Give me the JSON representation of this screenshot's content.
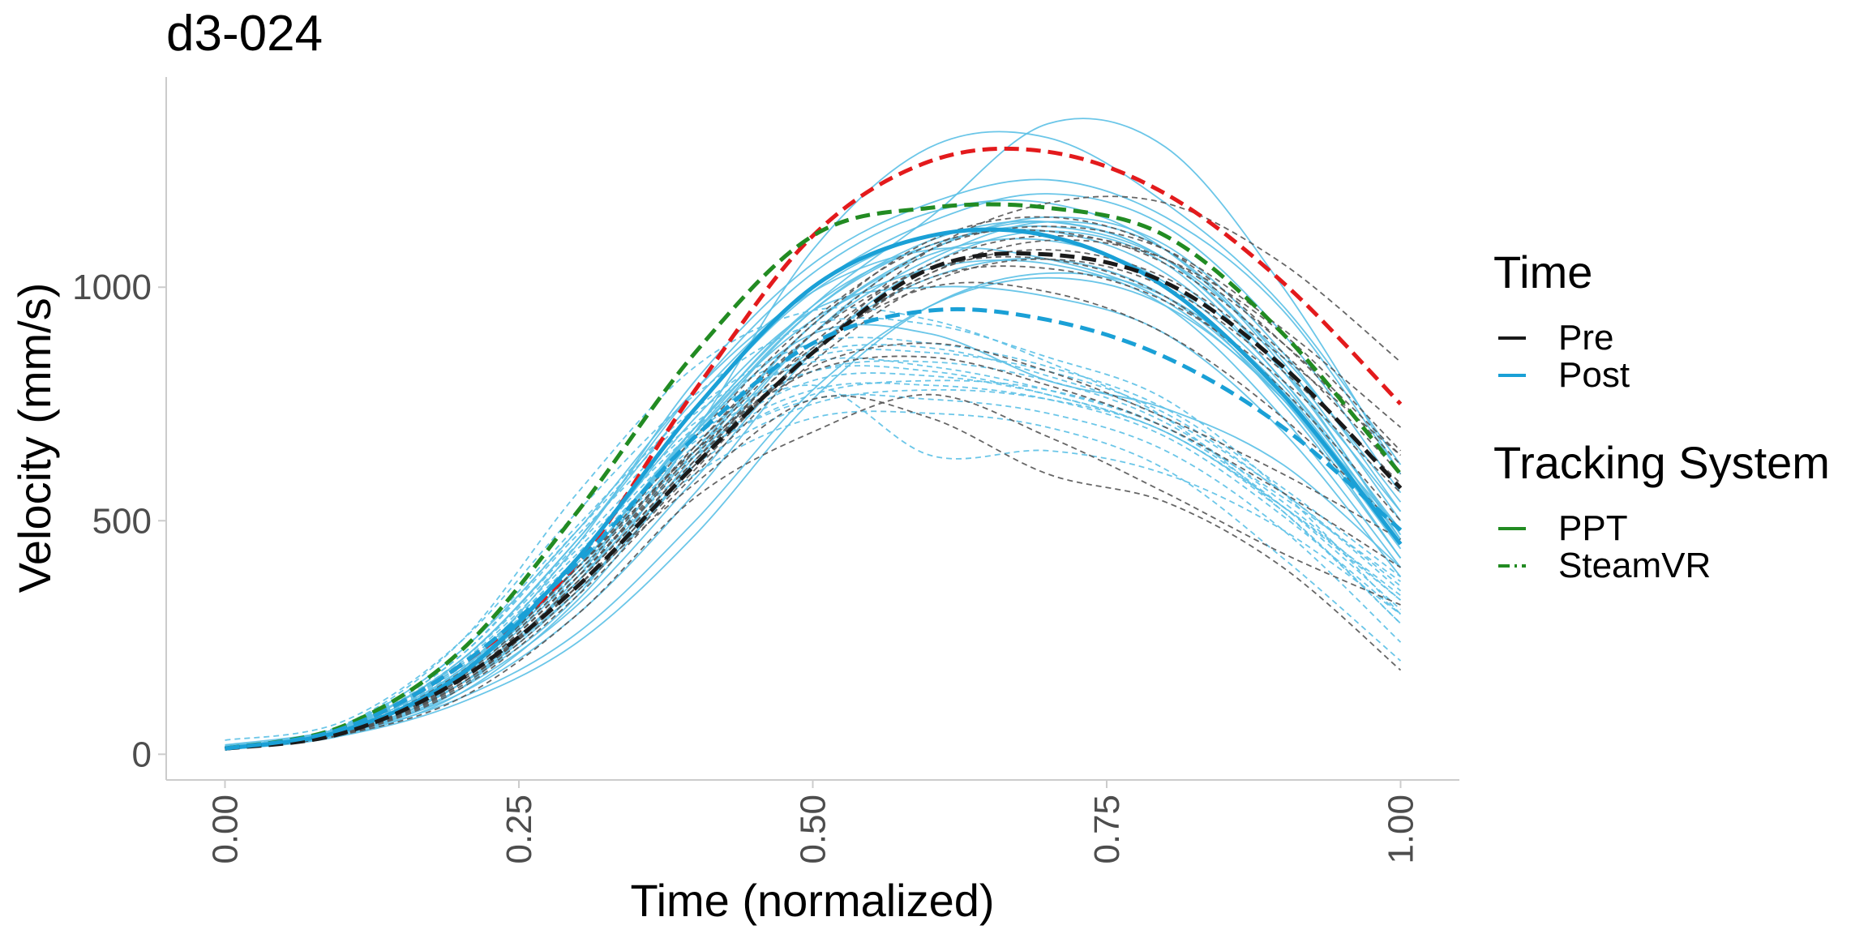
{
  "chart_data": {
    "type": "line",
    "title": "d3-024",
    "xlabel": "Time (normalized)",
    "ylabel": "Velocity (mm/s)",
    "xlim": [
      -0.05,
      1.05
    ],
    "ylim": [
      -55,
      1450
    ],
    "x_ticks": [
      0,
      0.25,
      0.5,
      0.75,
      1
    ],
    "x_tick_labels": [
      "0.00",
      "0.25",
      "0.50",
      "0.75",
      "1.00"
    ],
    "y_ticks": [
      0,
      500,
      1000
    ],
    "y_tick_labels": [
      "0",
      "500",
      "1000"
    ],
    "x_tick_label_rotation": "vertical",
    "grid": false,
    "legend_position": "right",
    "legend": {
      "groups": [
        {
          "title": "Time",
          "items": [
            {
              "label": "Pre",
              "color": "#1a1a1a",
              "dash": "solid"
            },
            {
              "label": "Post",
              "color": "#1aa0d6",
              "dash": "solid"
            }
          ]
        },
        {
          "title": "Tracking System",
          "items": [
            {
              "label": "PPT",
              "color": "#228b22",
              "dash": "solid"
            },
            {
              "label": "SteamVR",
              "color": "#228b22",
              "dash": "dashed"
            }
          ]
        }
      ]
    },
    "x": [
      0,
      0.1,
      0.2,
      0.3,
      0.4,
      0.5,
      0.6,
      0.7,
      0.8,
      0.9,
      1.0
    ],
    "series": [
      {
        "color": "#e31a1c",
        "dash": "dashed",
        "width": "thick",
        "values": [
          12,
          55,
          190,
          410,
          780,
          1110,
          1270,
          1290,
          1200,
          1010,
          750
        ]
      },
      {
        "color": "#228b22",
        "dash": "dashed",
        "width": "thick",
        "values": [
          12,
          60,
          220,
          520,
          860,
          1110,
          1170,
          1170,
          1110,
          900,
          600
        ]
      },
      {
        "color": "#1aa0d6",
        "dash": "solid",
        "width": "thick",
        "values": [
          12,
          50,
          170,
          420,
          740,
          1000,
          1110,
          1110,
          1000,
          770,
          450
        ]
      },
      {
        "color": "#1a1a1a",
        "dash": "dashed",
        "width": "thick",
        "values": [
          12,
          45,
          160,
          360,
          620,
          860,
          1040,
          1070,
          1010,
          830,
          570
        ]
      },
      {
        "color": "#1aa0d6",
        "dash": "dashed",
        "width": "thick",
        "values": [
          12,
          55,
          190,
          410,
          680,
          880,
          950,
          930,
          850,
          700,
          480
        ]
      },
      {
        "color": "#5bc0e6",
        "dash": "solid",
        "width": "thin",
        "values": [
          20,
          55,
          150,
          340,
          690,
          1080,
          1300,
          1320,
          1180,
          960,
          620
        ]
      },
      {
        "color": "#5bc0e6",
        "dash": "solid",
        "width": "thin",
        "values": [
          15,
          50,
          180,
          450,
          800,
          1050,
          1180,
          1230,
          1150,
          950,
          600
        ]
      },
      {
        "color": "#5bc0e6",
        "dash": "solid",
        "width": "thin",
        "values": [
          18,
          55,
          200,
          460,
          760,
          1000,
          1140,
          1200,
          1130,
          900,
          560
        ]
      },
      {
        "color": "#5bc0e6",
        "dash": "solid",
        "width": "thin",
        "values": [
          10,
          45,
          140,
          380,
          700,
          960,
          1150,
          1350,
          1300,
          1000,
          600
        ]
      },
      {
        "color": "#5bc0e6",
        "dash": "solid",
        "width": "thin",
        "values": [
          14,
          48,
          130,
          300,
          560,
          860,
          1050,
          1120,
          1050,
          800,
          480
        ]
      },
      {
        "color": "#5bc0e6",
        "dash": "solid",
        "width": "thin",
        "values": [
          12,
          50,
          160,
          350,
          620,
          900,
          1080,
          1140,
          1060,
          820,
          520
        ]
      },
      {
        "color": "#5bc0e6",
        "dash": "solid",
        "width": "thin",
        "values": [
          16,
          60,
          220,
          480,
          780,
          990,
          1080,
          1060,
          970,
          760,
          480
        ]
      },
      {
        "color": "#5bc0e6",
        "dash": "solid",
        "width": "thin",
        "values": [
          12,
          50,
          170,
          400,
          700,
          930,
          1040,
          1050,
          960,
          720,
          400
        ]
      },
      {
        "color": "#5bc0e6",
        "dash": "solid",
        "width": "thin",
        "values": [
          14,
          55,
          180,
          420,
          720,
          950,
          1000,
          980,
          900,
          690,
          380
        ]
      },
      {
        "color": "#5bc0e6",
        "dash": "solid",
        "width": "thin",
        "values": [
          12,
          45,
          120,
          260,
          500,
          780,
          960,
          1020,
          960,
          760,
          440
        ]
      },
      {
        "color": "#5bc0e6",
        "dash": "solid",
        "width": "thin",
        "values": [
          10,
          40,
          130,
          330,
          630,
          900,
          1060,
          1140,
          1080,
          840,
          500
        ]
      },
      {
        "color": "#5bc0e6",
        "dash": "solid",
        "width": "thin",
        "values": [
          15,
          52,
          170,
          400,
          690,
          900,
          900,
          800,
          740,
          620,
          400
        ]
      },
      {
        "color": "#5bc0e6",
        "dash": "solid",
        "width": "thin",
        "values": [
          12,
          48,
          160,
          370,
          650,
          920,
          1070,
          1100,
          1010,
          790,
          460
        ]
      },
      {
        "color": "#5bc0e6",
        "dash": "solid",
        "width": "thin",
        "values": [
          10,
          42,
          140,
          320,
          590,
          870,
          1020,
          1060,
          980,
          760,
          420
        ]
      },
      {
        "color": "#5bc0e6",
        "dash": "solid",
        "width": "thin",
        "values": [
          13,
          50,
          175,
          420,
          740,
          990,
          1110,
          1110,
          1000,
          750,
          420
        ]
      },
      {
        "color": "#5bc0e6",
        "dash": "solid",
        "width": "thin",
        "values": [
          12,
          46,
          150,
          350,
          640,
          920,
          1080,
          1150,
          1090,
          860,
          520
        ]
      },
      {
        "color": "#5bc0e6",
        "dash": "solid",
        "width": "thin",
        "values": [
          11,
          44,
          150,
          370,
          680,
          950,
          1100,
          1140,
          1060,
          820,
          470
        ]
      },
      {
        "color": "#5bc0e6",
        "dash": "solid",
        "width": "thin",
        "values": [
          14,
          58,
          200,
          460,
          780,
          1030,
          1160,
          1180,
          1080,
          830,
          460
        ]
      },
      {
        "color": "#5bc0e6",
        "dash": "solid",
        "width": "thin",
        "values": [
          12,
          48,
          165,
          390,
          690,
          950,
          1090,
          1120,
          1030,
          800,
          450
        ]
      },
      {
        "color": "#5bc0e6",
        "dash": "solid",
        "width": "thin",
        "values": [
          13,
          50,
          170,
          400,
          700,
          960,
          1090,
          1130,
          1060,
          850,
          540
        ]
      },
      {
        "color": "#5bc0e6",
        "dash": "solid",
        "width": "thin",
        "values": [
          10,
          40,
          110,
          240,
          470,
          760,
          960,
          1030,
          980,
          780,
          450
        ]
      },
      {
        "color": "#5bc0e6",
        "dash": "dashed",
        "width": "thin",
        "values": [
          30,
          70,
          240,
          520,
          770,
          920,
          920,
          850,
          760,
          560,
          300
        ]
      },
      {
        "color": "#5bc0e6",
        "dash": "dashed",
        "width": "thin",
        "values": [
          12,
          62,
          240,
          560,
          830,
          950,
          930,
          840,
          720,
          520,
          280
        ]
      },
      {
        "color": "#5bc0e6",
        "dash": "dashed",
        "width": "thin",
        "values": [
          12,
          60,
          210,
          480,
          730,
          860,
          870,
          810,
          720,
          560,
          350
        ]
      },
      {
        "color": "#5bc0e6",
        "dash": "dashed",
        "width": "thin",
        "values": [
          14,
          58,
          200,
          440,
          690,
          820,
          820,
          770,
          690,
          530,
          330
        ]
      },
      {
        "color": "#5bc0e6",
        "dash": "dashed",
        "width": "thin",
        "values": [
          13,
          55,
          190,
          420,
          670,
          790,
          640,
          650,
          600,
          480,
          300
        ]
      },
      {
        "color": "#5bc0e6",
        "dash": "dashed",
        "width": "thin",
        "values": [
          12,
          52,
          180,
          400,
          640,
          760,
          760,
          730,
          650,
          480,
          240
        ]
      },
      {
        "color": "#5bc0e6",
        "dash": "dashed",
        "width": "thin",
        "values": [
          12,
          50,
          175,
          390,
          620,
          750,
          780,
          760,
          690,
          520,
          280
        ]
      },
      {
        "color": "#5bc0e6",
        "dash": "dashed",
        "width": "thin",
        "values": [
          10,
          48,
          170,
          380,
          600,
          720,
          730,
          700,
          610,
          420,
          200
        ]
      },
      {
        "color": "#5bc0e6",
        "dash": "dashed",
        "width": "thin",
        "values": [
          12,
          55,
          190,
          420,
          660,
          800,
          810,
          770,
          690,
          530,
          340
        ]
      },
      {
        "color": "#5bc0e6",
        "dash": "dashed",
        "width": "thin",
        "values": [
          14,
          58,
          200,
          450,
          700,
          850,
          860,
          820,
          730,
          560,
          360
        ]
      },
      {
        "color": "#5bc0e6",
        "dash": "dashed",
        "width": "thin",
        "values": [
          13,
          56,
          195,
          430,
          680,
          820,
          840,
          800,
          710,
          540,
          330
        ]
      },
      {
        "color": "#5bc0e6",
        "dash": "dashed",
        "width": "thin",
        "values": [
          15,
          60,
          210,
          470,
          710,
          840,
          830,
          780,
          700,
          550,
          370
        ]
      },
      {
        "color": "#5bc0e6",
        "dash": "dashed",
        "width": "thin",
        "values": [
          12,
          53,
          185,
          410,
          650,
          780,
          790,
          760,
          680,
          510,
          300
        ]
      },
      {
        "color": "#5bc0e6",
        "dash": "dashed",
        "width": "thin",
        "values": [
          16,
          62,
          220,
          490,
          740,
          880,
          880,
          830,
          740,
          570,
          380
        ]
      },
      {
        "color": "#5bc0e6",
        "dash": "dashed",
        "width": "thin",
        "values": [
          11,
          50,
          180,
          400,
          640,
          770,
          800,
          780,
          700,
          530,
          310
        ]
      },
      {
        "color": "#555555",
        "dash": "dashed",
        "width": "thin",
        "values": [
          12,
          45,
          150,
          360,
          620,
          860,
          1080,
          1180,
          1180,
          1050,
          840
        ]
      },
      {
        "color": "#555555",
        "dash": "dashed",
        "width": "thin",
        "values": [
          12,
          45,
          160,
          380,
          660,
          920,
          1100,
          1150,
          1080,
          880,
          620
        ]
      },
      {
        "color": "#555555",
        "dash": "dashed",
        "width": "thin",
        "values": [
          12,
          42,
          140,
          340,
          600,
          840,
          1010,
          1060,
          1000,
          820,
          580
        ]
      },
      {
        "color": "#555555",
        "dash": "dashed",
        "width": "thin",
        "values": [
          12,
          48,
          170,
          400,
          680,
          930,
          1090,
          1120,
          1050,
          860,
          600
        ]
      },
      {
        "color": "#555555",
        "dash": "dashed",
        "width": "thin",
        "values": [
          12,
          44,
          150,
          360,
          620,
          860,
          1030,
          1080,
          1020,
          850,
          640
        ]
      },
      {
        "color": "#555555",
        "dash": "dashed",
        "width": "thin",
        "values": [
          12,
          46,
          160,
          380,
          650,
          900,
          1080,
          1130,
          1080,
          910,
          700
        ]
      },
      {
        "color": "#555555",
        "dash": "dashed",
        "width": "thin",
        "values": [
          12,
          43,
          145,
          350,
          610,
          860,
          1020,
          1040,
          970,
          800,
          560
        ]
      },
      {
        "color": "#555555",
        "dash": "dashed",
        "width": "thin",
        "values": [
          12,
          48,
          175,
          400,
          650,
          820,
          850,
          790,
          700,
          560,
          400
        ]
      },
      {
        "color": "#555555",
        "dash": "dashed",
        "width": "thin",
        "values": [
          12,
          50,
          170,
          400,
          650,
          830,
          880,
          820,
          720,
          600,
          460
        ]
      },
      {
        "color": "#555555",
        "dash": "dashed",
        "width": "thin",
        "values": [
          12,
          42,
          120,
          300,
          550,
          690,
          770,
          680,
          560,
          430,
          320
        ]
      },
      {
        "color": "#555555",
        "dash": "dashed",
        "width": "thin",
        "values": [
          12,
          46,
          150,
          360,
          580,
          760,
          720,
          600,
          540,
          400,
          180
        ]
      },
      {
        "color": "#555555",
        "dash": "dashed",
        "width": "thin",
        "values": [
          12,
          45,
          160,
          380,
          640,
          870,
          1000,
          990,
          900,
          720,
          480
        ]
      },
      {
        "color": "#555555",
        "dash": "dashed",
        "width": "thin",
        "values": [
          12,
          44,
          150,
          370,
          630,
          880,
          1050,
          1110,
          1060,
          880,
          640
        ]
      },
      {
        "color": "#555555",
        "dash": "dashed",
        "width": "thin",
        "values": [
          12,
          47,
          165,
          390,
          660,
          900,
          1040,
          1060,
          980,
          780,
          500
        ]
      },
      {
        "color": "#555555",
        "dash": "dashed",
        "width": "thin",
        "values": [
          12,
          45,
          155,
          370,
          630,
          860,
          1030,
          1100,
          1060,
          900,
          650
        ]
      }
    ]
  }
}
